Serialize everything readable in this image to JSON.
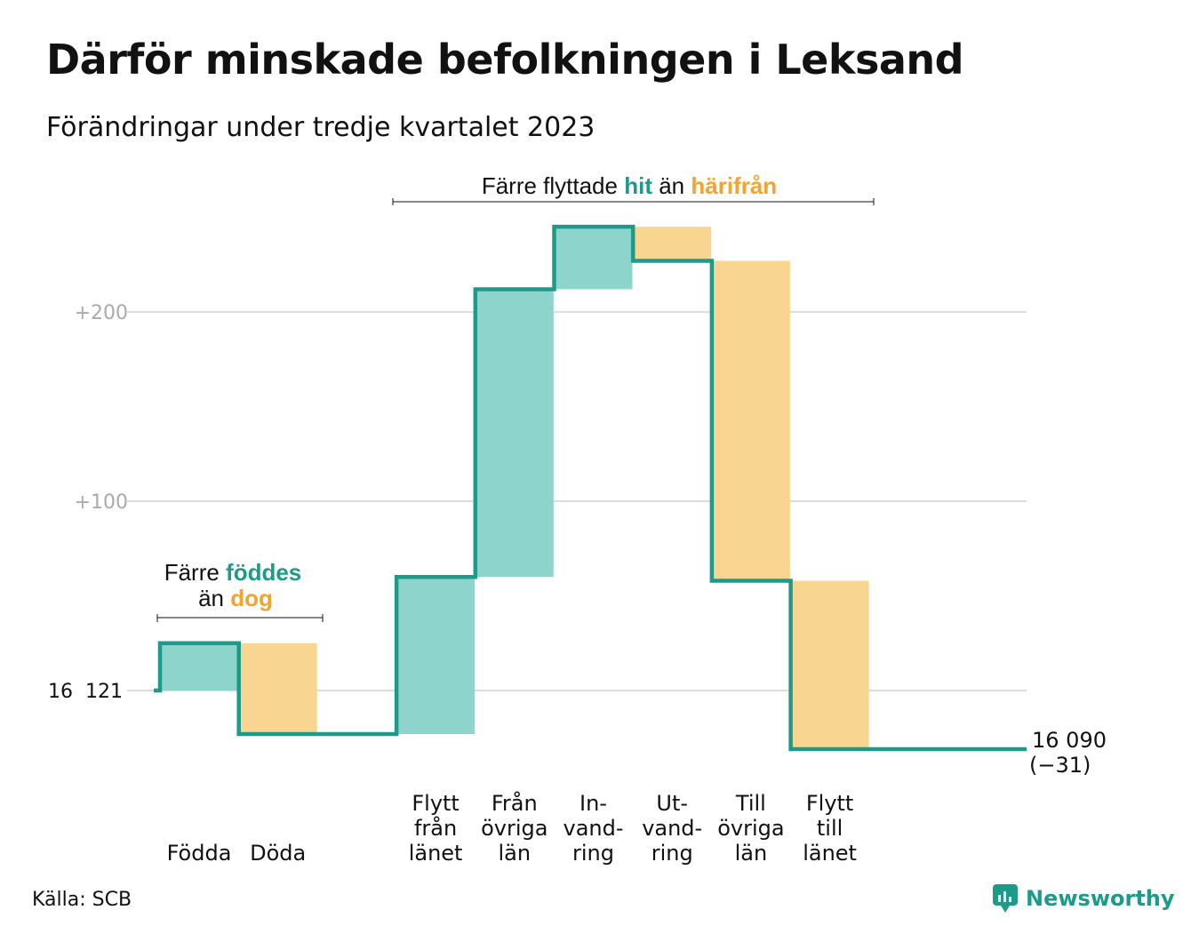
{
  "title": "Därför minskade befolkningen i Leksand",
  "subtitle": "Förändringar under tredje kvartalet 2023",
  "source": "Källa: SCB",
  "brand": "Newsworthy",
  "colors": {
    "inflow": "#8dd4cc",
    "outflow": "#f9d68f",
    "line": "#1e9a8a",
    "highlight_inflow": "#1e9a8a",
    "highlight_outflow": "#f2a332",
    "grid": "#dddddd",
    "tick_label": "#aaaaaa"
  },
  "annotations": {
    "births": {
      "line1_pre": "Färre ",
      "line1_hl": "föddes",
      "line2_pre": "än ",
      "line2_hl": "dog"
    },
    "migration": {
      "pre": "Färre flyttade ",
      "hl1": "hit",
      "mid": " än ",
      "hl2": "härifrån"
    }
  },
  "chart_data": {
    "type": "waterfall",
    "start_value": 16121,
    "start_label": "16  121",
    "end_value": 16090,
    "end_label": "16 090",
    "end_change_label": "(−31)",
    "y_ticks": [
      {
        "value": 0,
        "label": ""
      },
      {
        "value": 100,
        "label": "+100"
      },
      {
        "value": 200,
        "label": "+200"
      }
    ],
    "y_axis_unit": "change from start",
    "ylim": [
      -35,
      245
    ],
    "grid": true,
    "categories": [
      {
        "label": [
          "Födda"
        ],
        "delta": 25,
        "direction": "in"
      },
      {
        "label": [
          "Döda"
        ],
        "delta": -48,
        "direction": "out"
      },
      {
        "label": [],
        "delta": 0,
        "direction": "none"
      },
      {
        "label": [
          "Flytt",
          "från",
          "länet"
        ],
        "delta": 83,
        "direction": "in"
      },
      {
        "label": [
          "Från",
          "övriga",
          "län"
        ],
        "delta": 152,
        "direction": "in"
      },
      {
        "label": [
          "In-",
          "vand-",
          "ring"
        ],
        "delta": 33,
        "direction": "in"
      },
      {
        "label": [
          "Ut-",
          "vand-",
          "ring"
        ],
        "delta": -18,
        "direction": "out"
      },
      {
        "label": [
          "Till",
          "övriga",
          "län"
        ],
        "delta": -169,
        "direction": "out"
      },
      {
        "label": [
          "Flytt",
          "till",
          "länet"
        ],
        "delta": -89,
        "direction": "out"
      },
      {
        "label": [],
        "delta": 0,
        "direction": "none"
      }
    ]
  }
}
